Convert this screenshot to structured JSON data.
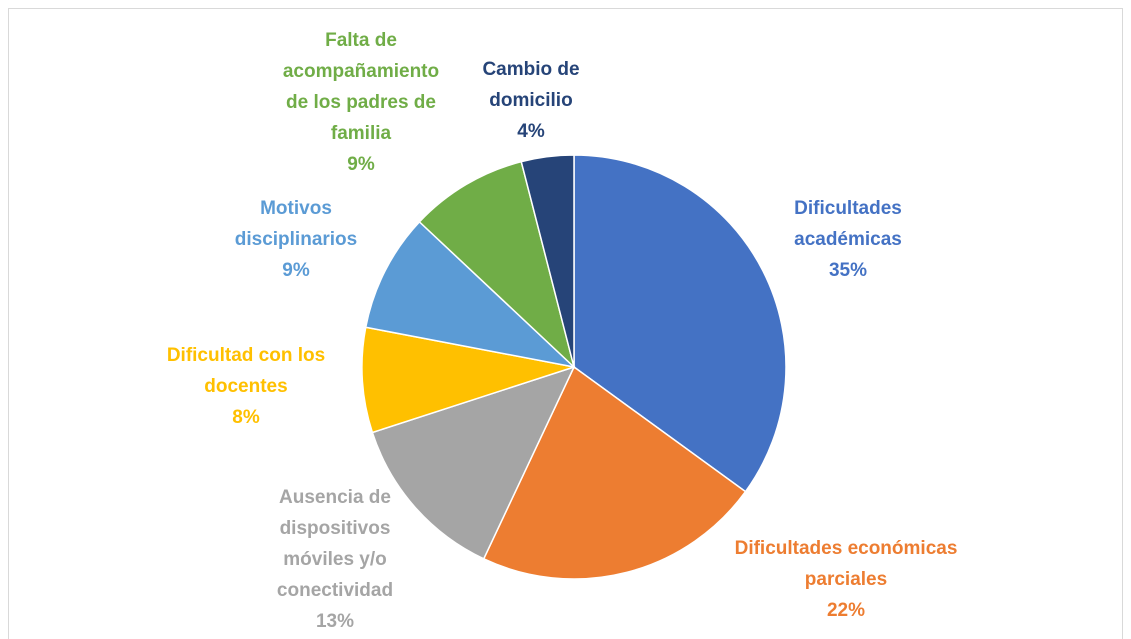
{
  "chart_data": {
    "type": "pie",
    "categories": [
      "Dificultades académicas",
      "Dificultades económicas parciales",
      "Ausencia de dispositivos móviles y/o conectividad",
      "Dificultad con los docentes",
      "Motivos disciplinarios",
      "Falta de acompañamiento de los padres de familia",
      "Cambio de domicilio"
    ],
    "values": [
      35,
      22,
      13,
      8,
      9,
      9,
      4
    ],
    "value_labels": [
      "35%",
      "22%",
      "13%",
      "8%",
      "9%",
      "9%",
      "4%"
    ],
    "colors": [
      "#4472c4",
      "#ed7d31",
      "#a5a5a5",
      "#ffc000",
      "#5b9bd5",
      "#70ad47",
      "#264478"
    ]
  }
}
